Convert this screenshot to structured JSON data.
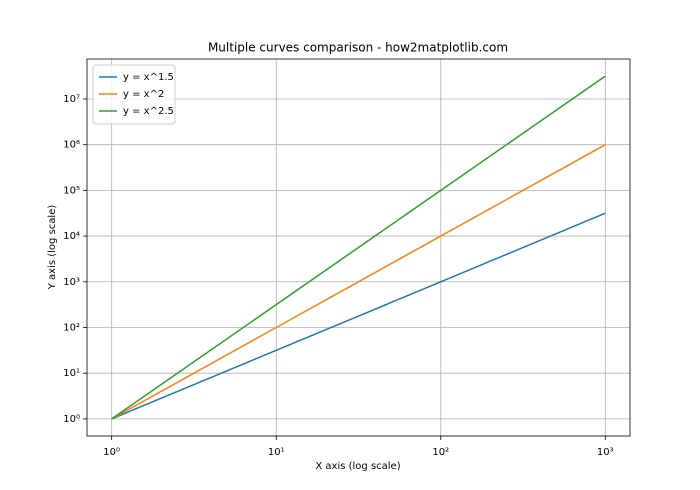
{
  "chart_data": {
    "type": "line",
    "title": "Multiple curves comparison - how2matplotlib.com",
    "x_label": "X axis (log scale)",
    "y_label": "Y axis (log scale)",
    "x": [
      1,
      10,
      100,
      1000
    ],
    "series": [
      {
        "name": "y = x^1.5",
        "color": "#1f77b4",
        "values": [
          1,
          31.62,
          1000,
          31622.78
        ]
      },
      {
        "name": "y = x^2",
        "color": "#ff7f0e",
        "values": [
          1,
          100,
          10000,
          1000000
        ]
      },
      {
        "name": "y = x^2.5",
        "color": "#2ca02c",
        "values": [
          1,
          316.23,
          100000,
          31622776.6
        ]
      }
    ],
    "xscale": "log",
    "yscale": "log",
    "xlim": [
      0.708,
      1413
    ],
    "ylim": [
      0.422,
      74989421
    ],
    "xticks": [
      {
        "value": 1,
        "label": "10⁰"
      },
      {
        "value": 10,
        "label": "10¹"
      },
      {
        "value": 100,
        "label": "10²"
      },
      {
        "value": 1000,
        "label": "10³"
      }
    ],
    "yticks": [
      {
        "value": 1,
        "label": "10⁰"
      },
      {
        "value": 10,
        "label": "10¹"
      },
      {
        "value": 100,
        "label": "10²"
      },
      {
        "value": 1000,
        "label": "10³"
      },
      {
        "value": 10000,
        "label": "10⁴"
      },
      {
        "value": 100000,
        "label": "10⁵"
      },
      {
        "value": 1000000,
        "label": "10⁶"
      },
      {
        "value": 10000000,
        "label": "10⁷"
      }
    ],
    "grid": true,
    "legend": "upper left"
  }
}
